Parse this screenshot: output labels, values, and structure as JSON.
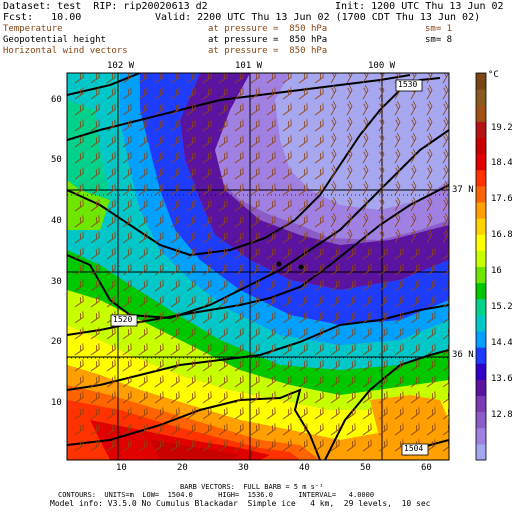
{
  "header": {
    "dataset": "Dataset: test  RIP: rip20020613 d2",
    "init": "Init: 1200 UTC Thu 13 Jun 02",
    "fcst": "Fcst:   10.00",
    "valid": "Valid: 2200 UTC Thu 13 Jun 02 (1700 CDT Thu 13 Jun 02)",
    "fields": [
      {
        "name": "Temperature",
        "pressure": "at pressure =  850 hPa",
        "sm": "sm= 1",
        "color": "#8b4513"
      },
      {
        "name": "Geopotential height",
        "pressure": "at pressure =  850 hPa",
        "sm": "sm= 8",
        "color": "#000000"
      },
      {
        "name": "Horizontal wind vectors",
        "pressure": "at pressure =  850 hPa",
        "sm": "",
        "color": "#8b4513"
      }
    ]
  },
  "map": {
    "lon_labels": [
      "102 W",
      "101 W",
      "100 W"
    ],
    "lat_labels": [
      "37 N",
      "36 N"
    ],
    "y_ticks": [
      "10",
      "20",
      "30",
      "40",
      "50",
      "60"
    ],
    "x_ticks": [
      "10",
      "20",
      "30",
      "40",
      "50",
      "60"
    ],
    "contour_labels": [
      "1530",
      "1520",
      "1504"
    ],
    "legend_unit": "°C",
    "legend_values": [
      "19.2",
      "18.4",
      "17.6",
      "16.8",
      "16",
      "15.2",
      "14.4",
      "13.6",
      "12.8"
    ],
    "color_scale": [
      "#a7a7f0",
      "#a080e0",
      "#8c5cc8",
      "#7a3cb4",
      "#5a14a0",
      "#3200c8",
      "#1e3cff",
      "#00a0ff",
      "#00c8c8",
      "#00d28c",
      "#00c800",
      "#6ee600",
      "#c8ff00",
      "#ffff00",
      "#ffd200",
      "#ffa000",
      "#ff6400",
      "#ff3200",
      "#e10000",
      "#c80000",
      "#b41414",
      "#a05014",
      "#8c5a1e",
      "#7a4614"
    ]
  },
  "footer": {
    "barb_line": "BARB VECTORS:  FULL BARB = 5 m s⁻¹",
    "contour_line": "CONTOURS:  UNITS=m  LOW=  1504.0      HIGH=  1536.0      INTERVAL=   4.0000",
    "model_line": "Model info: V3.5.0 No Cumulus Blackadar  Simple ice   4 km,  29 levels,  10 sec"
  }
}
